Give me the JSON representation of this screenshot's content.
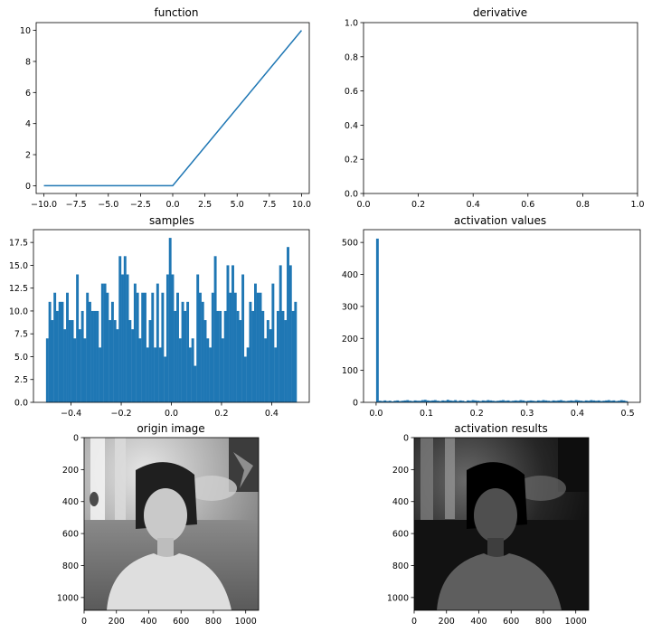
{
  "colors": {
    "series": "#1f77b4",
    "frame": "#000000",
    "background": "#ffffff"
  },
  "chart_data": [
    {
      "id": "function",
      "type": "line",
      "title": "function",
      "xlabel": "",
      "ylabel": "",
      "xlim": [
        -10.6,
        10.6
      ],
      "ylim": [
        -0.5,
        10.5
      ],
      "xticks": [
        -10,
        -7.5,
        -5,
        -2.5,
        0,
        2.5,
        5,
        7.5,
        10
      ],
      "xtick_labels": [
        "−10.0",
        "−7.5",
        "−5.0",
        "−2.5",
        "0.0",
        "2.5",
        "5.0",
        "7.5",
        "10.0"
      ],
      "yticks": [
        0,
        2,
        4,
        6,
        8,
        10
      ],
      "ytick_labels": [
        "0",
        "2",
        "4",
        "6",
        "8",
        "10"
      ],
      "series": [
        {
          "x": [
            -10,
            0,
            10
          ],
          "y": [
            0,
            0,
            10
          ]
        }
      ]
    },
    {
      "id": "derivative",
      "type": "line",
      "title": "derivative",
      "xlabel": "",
      "ylabel": "",
      "xlim": [
        0,
        1
      ],
      "ylim": [
        0,
        1
      ],
      "xticks": [
        0,
        0.2,
        0.4,
        0.6,
        0.8,
        1.0
      ],
      "xtick_labels": [
        "0.0",
        "0.2",
        "0.4",
        "0.6",
        "0.8",
        "1.0"
      ],
      "yticks": [
        0,
        0.2,
        0.4,
        0.6,
        0.8,
        1.0
      ],
      "ytick_labels": [
        "0.0",
        "0.2",
        "0.4",
        "0.6",
        "0.8",
        "1.0"
      ],
      "series": []
    },
    {
      "id": "samples",
      "type": "bar",
      "title": "samples",
      "xlabel": "",
      "ylabel": "",
      "xlim": [
        -0.55,
        0.55
      ],
      "ylim": [
        0,
        18.9
      ],
      "bin_range": [
        -0.5,
        0.5
      ],
      "xticks": [
        -0.4,
        -0.2,
        0,
        0.2,
        0.4
      ],
      "xtick_labels": [
        "−0.4",
        "−0.2",
        "0.0",
        "0.2",
        "0.4"
      ],
      "yticks": [
        0,
        2.5,
        5,
        7.5,
        10,
        12.5,
        15,
        17.5
      ],
      "ytick_labels": [
        "0.0",
        "2.5",
        "5.0",
        "7.5",
        "10.0",
        "12.5",
        "15.0",
        "17.5"
      ],
      "values": [
        7,
        11,
        9,
        12,
        10,
        11,
        11,
        8,
        12,
        9,
        9,
        7,
        14,
        8,
        10,
        7,
        12,
        11,
        10,
        10,
        10,
        6,
        13,
        13,
        12,
        9,
        11,
        9,
        8,
        16,
        14,
        16,
        14,
        9,
        8,
        13,
        12,
        7,
        12,
        12,
        6,
        9,
        12,
        6,
        13,
        6,
        12,
        5,
        14,
        18,
        14,
        10,
        12,
        7,
        11,
        10,
        11,
        6,
        7,
        4,
        14,
        12,
        11,
        9,
        7,
        6,
        12,
        16,
        10,
        10,
        7,
        10,
        15,
        12,
        15,
        12,
        10,
        9,
        14,
        5,
        6,
        11,
        10,
        13,
        12,
        12,
        10,
        7,
        9,
        8,
        13,
        6,
        10,
        15,
        10,
        9,
        17,
        15,
        10,
        11
      ]
    },
    {
      "id": "activation",
      "type": "bar",
      "title": "activation values",
      "xlabel": "",
      "ylabel": "",
      "xlim": [
        -0.025,
        0.525
      ],
      "ylim": [
        0,
        540
      ],
      "bin_range": [
        0,
        0.5
      ],
      "xticks": [
        0,
        0.1,
        0.2,
        0.3,
        0.4,
        0.5
      ],
      "xtick_labels": [
        "0.0",
        "0.1",
        "0.2",
        "0.3",
        "0.4",
        "0.5"
      ],
      "yticks": [
        0,
        100,
        200,
        300,
        400,
        500
      ],
      "ytick_labels": [
        "0",
        "100",
        "200",
        "300",
        "400",
        "500"
      ],
      "values": [
        512,
        5,
        4,
        6,
        4,
        5,
        3,
        5,
        6,
        4,
        5,
        6,
        7,
        5,
        4,
        6,
        5,
        5,
        7,
        8,
        6,
        5,
        6,
        7,
        5,
        4,
        6,
        5,
        8,
        6,
        5,
        7,
        4,
        6,
        5,
        3,
        6,
        5,
        7,
        6,
        5,
        4,
        6,
        5,
        7,
        6,
        5,
        4,
        5,
        6,
        7,
        5,
        6,
        4,
        5,
        6,
        5,
        7,
        6,
        4,
        5,
        6,
        5,
        4,
        6,
        5,
        7,
        6,
        5,
        4,
        6,
        5,
        6,
        7,
        5,
        4,
        5,
        6,
        5,
        7,
        6,
        5,
        4,
        6,
        5,
        7,
        6,
        5,
        6,
        4,
        5,
        6,
        7,
        5,
        6,
        4,
        5,
        7,
        6,
        4
      ]
    },
    {
      "id": "origin",
      "type": "heatmap",
      "title": "origin image",
      "xlabel": "",
      "ylabel": "",
      "xlim": [
        0,
        1080
      ],
      "ylim": [
        1080,
        0
      ],
      "colormap": "gray",
      "xticks": [
        0,
        200,
        400,
        600,
        800,
        1000
      ],
      "xtick_labels": [
        "0",
        "200",
        "400",
        "600",
        "800",
        "1000"
      ],
      "yticks": [
        0,
        200,
        400,
        600,
        800,
        1000
      ],
      "ytick_labels": [
        "0",
        "200",
        "400",
        "600",
        "800",
        "1000"
      ]
    },
    {
      "id": "results",
      "type": "heatmap",
      "title": "activation results",
      "xlabel": "",
      "ylabel": "",
      "xlim": [
        0,
        1080
      ],
      "ylim": [
        1080,
        0
      ],
      "colormap": "gray",
      "xticks": [
        0,
        200,
        400,
        600,
        800,
        1000
      ],
      "xtick_labels": [
        "0",
        "200",
        "400",
        "600",
        "800",
        "1000"
      ],
      "yticks": [
        0,
        200,
        400,
        600,
        800,
        1000
      ],
      "ytick_labels": [
        "0",
        "200",
        "400",
        "600",
        "800",
        "1000"
      ]
    }
  ]
}
